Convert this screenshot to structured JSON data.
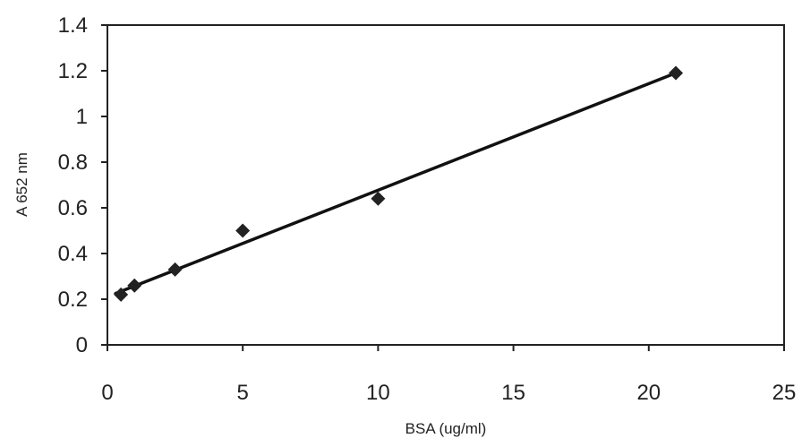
{
  "chart_data": {
    "type": "scatter",
    "xlabel": "BSA (ug/ml)",
    "ylabel": "A 652 nm",
    "xlim": [
      0,
      25
    ],
    "ylim": [
      0,
      1.4
    ],
    "x_ticks": [
      0,
      5,
      10,
      15,
      20,
      25
    ],
    "x_tick_labels": [
      "0",
      "5",
      "10",
      "15",
      "20",
      "25"
    ],
    "y_ticks": [
      0,
      0.2,
      0.4,
      0.6,
      0.8,
      1,
      1.2,
      1.4
    ],
    "y_tick_labels": [
      "0",
      "0.2",
      "0.4",
      "0.6",
      "0.8",
      "1",
      "1.2",
      "1.4"
    ],
    "grid": false,
    "legend": "none",
    "series": [
      {
        "marker": "diamond",
        "color": "#222222",
        "x": [
          0.5,
          1,
          2.5,
          5,
          10,
          21
        ],
        "y": [
          0.22,
          0.26,
          0.33,
          0.5,
          0.64,
          1.19
        ]
      }
    ],
    "trendline": {
      "type": "linear",
      "x": [
        0.3,
        21
      ],
      "y": [
        0.225,
        1.19
      ],
      "color": "#111111"
    }
  }
}
